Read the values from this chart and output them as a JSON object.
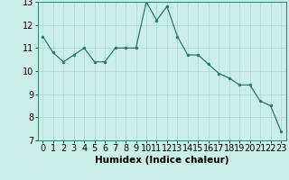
{
  "x": [
    0,
    1,
    2,
    3,
    4,
    5,
    6,
    7,
    8,
    9,
    10,
    11,
    12,
    13,
    14,
    15,
    16,
    17,
    18,
    19,
    20,
    21,
    22,
    23
  ],
  "y": [
    11.5,
    10.8,
    10.4,
    10.7,
    11.0,
    10.4,
    10.4,
    11.0,
    11.0,
    11.0,
    13.0,
    12.2,
    12.8,
    11.5,
    10.7,
    10.7,
    10.3,
    9.9,
    9.7,
    9.4,
    9.4,
    8.7,
    8.5,
    7.4
  ],
  "xlabel": "Humidex (Indice chaleur)",
  "xlim_left": -0.5,
  "xlim_right": 23.5,
  "ylim": [
    7,
    13
  ],
  "yticks": [
    7,
    8,
    9,
    10,
    11,
    12,
    13
  ],
  "xticks": [
    0,
    1,
    2,
    3,
    4,
    5,
    6,
    7,
    8,
    9,
    10,
    11,
    12,
    13,
    14,
    15,
    16,
    17,
    18,
    19,
    20,
    21,
    22,
    23
  ],
  "line_color": "#2a7a6a",
  "marker_color": "#2a7a6a",
  "bg_color": "#cceee8",
  "grid_color": "#aad8d0",
  "axis_label_fontsize": 7.5,
  "tick_fontsize": 7
}
